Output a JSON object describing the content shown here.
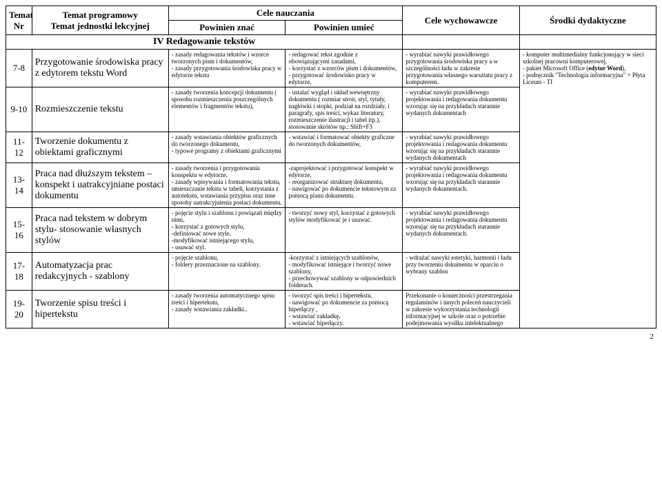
{
  "headers": {
    "h_temat_nr": "Temat\nNr",
    "h_temat_prog": "Temat programowy\nTemat jednostki lekcyjnej",
    "h_cele_naucz": "Cele nauczania",
    "h_znac": "Powinien znać",
    "h_umiec": "Powinien umieć",
    "h_wych": "Cele wychowawcze",
    "h_srodki": "Środki dydaktyczne"
  },
  "section": "IV Redagowanie tekstów",
  "rows": [
    {
      "nr": "7-8",
      "topic": "Przygotowanie środowiska pracy z edytorem tekstu Word",
      "know": "- zasady redagowania tekstów i wzorce tworzonych pism i dokumentów,\n- zasady przygotowania środowiska pracy w edytorze tekstu",
      "able": "- redagować tekst zgodnie z obowiązującymi zasadami,\n- korzystać z wzorców pism i dokumentów,\n- przygotować środowisko pracy w edytorze,",
      "edu": "- wyrabiać nawyki prawidłowego przygotowania środowiska pracy a w szczególności ładu w zakresie przygotowania własnego warsztatu pracy z komputerem."
    },
    {
      "nr": "9-10",
      "topic": "Rozmieszczenie tekstu",
      "know": "- zasady tworzenia koncepcji dokumentu ( sposobu rozmieszczenia poszczególnych elementów i fragmentów tekstu),",
      "able": "- ustalać wygląd i układ wewnętrzny dokumentu ( rozmiar stron, styl, tytuły, nagłówki i stopki, podział na rozdziały, i paragrafy, spis treści, wykaz literatury, rozmieszczenie ilustracji i tabel itp.), stosowanie skrótów np.: Shift+F3",
      "edu": "- wyrabiać nawyki prawidłowego projektowania i redagowania dokumentu wzorując się na przykładach starannie wydanych dokumentach"
    },
    {
      "nr": "11-12",
      "topic": "Tworzenie dokumentu z obiektami graficznymi",
      "know": "- zasady wstawiania obiektów graficznych do tworzonego dokumentu,\n- typowe programy z obiektami graficznymi",
      "able": "- wstawiać i formatować obiekty graficzne do tworzonych dokumentów,",
      "edu": "- wyrabiać nawyki prawidłowego projektowania i redagowania dokumentu wzorując się na przykładach starannie wydanych dokumentach"
    },
    {
      "nr": "13-14",
      "topic": "Praca nad dłuższym tekstem – konspekt i uatrakcyjniane postaci dokumentu",
      "know": "- zasady tworzenia i przygotowania konspektu w edytorze,\n- zasady wpisywania i formatowania tekstu, umieszczanie tekstu w tabeli, korzystania z autotekstu, wstawiania przypisu oraz inne sposoby uatrakcyjnienia postaci dokumentu.",
      "able": "-zaprojektować i przygotować konspekt w edytorze,\n- reorganizować strukturę dokumentu,\n- nawigować po dokumencie tekstowym za pomocą planu dokumentu.",
      "edu": "- wyrabiać nawyki prawidłowego projektowania i redagowania dokumentu wzorując się na przykładach starannie wydanych dokumentach."
    },
    {
      "nr": "15-16",
      "topic": "Praca nad tekstem w dobrym stylu- stosowanie własnych stylów",
      "know": "- pojęcie stylu i szablonu i powiązań między nimi,\n- korzystać z gotowych stylu,\n-definiować nowe style,\n-modyfikować istniejącego stylu,\n- usuwać styl.",
      "able": "- tworzyć nowy styl, korzystać z gotowych stylów modyfikować je i usuwać.",
      "edu": "- wyrabiać nawyki prawidłowego projektowania i redagowania dokumentu wzorując się na przykładach starannie wydanych dokumentach."
    },
    {
      "nr": "17-18",
      "topic": "Automatyzacja prac redakcyjnych - szablony",
      "know": "- pojęcie szablonu,\n- foldery przeznaczone na szablony.",
      "able": "-korzystać z istniejących szablonów,\n- modyfikować istniejące i tworzyć nowe szablony,\n- przechowywać szablony w odpowiednich folderach.",
      "edu": "- wdrażać nawyki estetyki, harmonii i ładu przy tworzeniu dokumentu w oparciu o wybrany szablon"
    },
    {
      "nr": "19-20",
      "topic": "Tworzenie spisu treści i hipertekstu",
      "know": "- zasady tworzenia automatycznego spisu treści i hipertekstu,\n- zasady wstawiania zakładki..",
      "able": "- tworzyć spis treści i hipertekstu,\n- nawigować po dokumencie za pomocą hiperłączy ,\n- wstawiać zakładkę,\n- wstawiać hiperłączy.",
      "edu": "Przekonanie o konieczności przestrzegania regulaminów i innych poleceń nauczycieli w zakresie wykorzystania technologii informacyjnej w szkole oraz o potrzebie podejmowania wysiłku intelektualnego"
    }
  ],
  "media": "- komputer multimedialny funkcjonujący w sieci szkolnej pracowni komputerowej,\n- pakiet Microsoft Office (edytor Word),\n- podręcznik \"Technologia informacyjna\" + Płyta Liceum - TI",
  "page": "2"
}
